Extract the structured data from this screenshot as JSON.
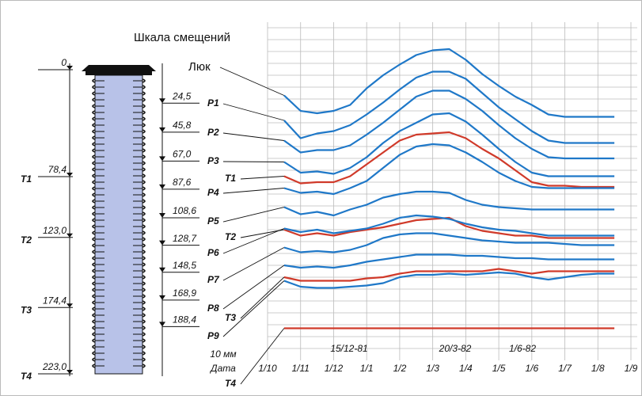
{
  "chart_data": {
    "type": "line",
    "title": "Шкала смещений",
    "x_label": "Дата",
    "scale_label": "10 мм",
    "grid_step": 10,
    "ylim": [
      0,
      280
    ],
    "categories": [
      "1/10",
      null,
      "1/11",
      null,
      "1/12",
      null,
      "1/1",
      null,
      "1/2",
      null,
      "1/3",
      null,
      "1/4",
      null,
      "1/5",
      null,
      "1/6",
      null,
      "1/7",
      null,
      "1/8",
      null,
      "1/9"
    ],
    "annotations": [
      "15/12-81",
      "20/3-82",
      "1/6-82"
    ],
    "series": [
      {
        "name": "Люк",
        "color": "#1f78c8",
        "values": [
          null,
          213,
          200,
          198,
          200,
          205,
          219,
          230,
          239,
          247,
          251,
          252,
          243,
          231,
          221,
          212,
          205,
          197,
          195,
          195,
          195,
          195,
          null
        ]
      },
      {
        "name": "P1",
        "color": "#1f78c8",
        "values": [
          null,
          192,
          177,
          181,
          183,
          188,
          197,
          207,
          218,
          228,
          233,
          233,
          227,
          215,
          203,
          193,
          183,
          175,
          173,
          173,
          173,
          173,
          null
        ]
      },
      {
        "name": "P2",
        "color": "#1f78c8",
        "values": [
          null,
          175,
          165,
          167,
          167,
          171,
          180,
          190,
          201,
          212,
          217,
          217,
          210,
          200,
          188,
          177,
          168,
          161,
          160,
          160,
          160,
          160,
          null
        ]
      },
      {
        "name": "P3",
        "color": "#1f78c8",
        "values": [
          null,
          157,
          148,
          149,
          147,
          152,
          161,
          173,
          183,
          190,
          197,
          198,
          191,
          180,
          168,
          157,
          148,
          145,
          145,
          145,
          145,
          145,
          null
        ]
      },
      {
        "name": "T1",
        "color": "#d03a2a",
        "values": [
          null,
          145,
          139,
          140,
          140,
          145,
          155,
          165,
          175,
          180,
          181,
          182,
          177,
          168,
          160,
          150,
          140,
          137,
          137,
          136,
          136,
          136,
          null
        ]
      },
      {
        "name": "P4",
        "color": "#1f78c8",
        "values": [
          null,
          135,
          131,
          132,
          130,
          135,
          141,
          152,
          163,
          170,
          172,
          171,
          165,
          157,
          148,
          141,
          136,
          135,
          135,
          135,
          135,
          135,
          null
        ]
      },
      {
        "name": "P5",
        "color": "#1f78c8",
        "values": [
          null,
          119,
          113,
          115,
          112,
          117,
          121,
          127,
          130,
          132,
          132,
          131,
          125,
          121,
          119,
          118,
          117,
          117,
          117,
          117,
          117,
          117,
          null
        ]
      },
      {
        "name": "T2",
        "color": "#d03a2a",
        "values": [
          null,
          100,
          95,
          97,
          95,
          98,
          100,
          102,
          105,
          108,
          109,
          110,
          103,
          99,
          97,
          95,
          95,
          93,
          93,
          93,
          93,
          93,
          null
        ]
      },
      {
        "name": "P6",
        "color": "#1f78c8",
        "values": [
          null,
          101,
          98,
          100,
          97,
          99,
          101,
          105,
          110,
          112,
          111,
          109,
          105,
          102,
          100,
          99,
          97,
          95,
          95,
          95,
          95,
          95,
          null
        ]
      },
      {
        "name": "P7",
        "color": "#1f78c8",
        "values": [
          null,
          85,
          81,
          82,
          81,
          83,
          87,
          93,
          96,
          97,
          97,
          95,
          93,
          91,
          90,
          89,
          89,
          89,
          88,
          87,
          87,
          87,
          null
        ]
      },
      {
        "name": "P8",
        "color": "#1f78c8",
        "values": [
          null,
          70,
          68,
          69,
          68,
          70,
          73,
          75,
          77,
          79,
          79,
          79,
          78,
          78,
          77,
          76,
          76,
          75,
          75,
          75,
          75,
          75,
          null
        ]
      },
      {
        "name": "T3",
        "color": "#d03a2a",
        "values": [
          null,
          60,
          57,
          57,
          57,
          57,
          59,
          60,
          63,
          65,
          65,
          65,
          65,
          65,
          67,
          65,
          63,
          65,
          65,
          65,
          65,
          65,
          null
        ]
      },
      {
        "name": "P9",
        "color": "#1f78c8",
        "values": [
          null,
          57,
          52,
          51,
          51,
          52,
          53,
          55,
          60,
          62,
          62,
          63,
          62,
          63,
          64,
          63,
          60,
          58,
          60,
          62,
          63,
          63,
          null
        ]
      },
      {
        "name": "T4",
        "color": "#d03a2a",
        "values": [
          null,
          17,
          17,
          17,
          17,
          17,
          17,
          17,
          17,
          17,
          17,
          17,
          17,
          17,
          17,
          17,
          17,
          17,
          17,
          17,
          17,
          17,
          null
        ]
      }
    ],
    "depth": {
      "lim": [
        0,
        223
      ],
      "ticks": [
        0,
        {
          "value": 78.4,
          "label": "78,4"
        },
        {
          "value": 123,
          "label": "123,0"
        },
        {
          "value": 174.4,
          "label": "174,4"
        },
        {
          "value": 223,
          "label": "223,0"
        }
      ],
      "tick_names": [
        null,
        "T1",
        "T2",
        "T3",
        "T4"
      ],
      "sensor_ticks": [
        {
          "value": 24.5,
          "label": "24,5"
        },
        {
          "value": 45.8,
          "label": "45,8"
        },
        {
          "value": 67,
          "label": "67,0"
        },
        {
          "value": 87.6,
          "label": "87,6"
        },
        {
          "value": 108.6,
          "label": "108,6"
        },
        {
          "value": 128.7,
          "label": "128,7"
        },
        {
          "value": 148.5,
          "label": "148,5"
        },
        {
          "value": 168.9,
          "label": "168,9"
        },
        {
          "value": 188.4,
          "label": "188,4"
        }
      ]
    }
  }
}
